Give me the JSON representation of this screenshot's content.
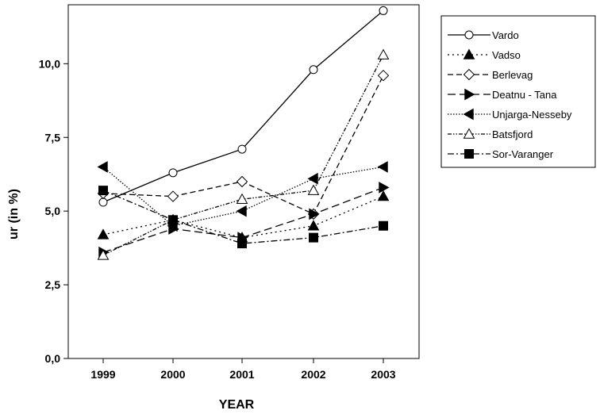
{
  "chart_data": {
    "type": "line",
    "xlabel": "YEAR",
    "ylabel": "ur (in %)",
    "categories": [
      "1999",
      "2000",
      "2001",
      "2002",
      "2003"
    ],
    "ylim": [
      0,
      12
    ],
    "yticks": [
      "0,0",
      "2,5",
      "5,0",
      "7,5",
      "10,0"
    ],
    "ytick_values": [
      0,
      2.5,
      5.0,
      7.5,
      10.0
    ],
    "grid": false,
    "legend_position": "right",
    "series": [
      {
        "name": "Vardo",
        "values": [
          5.3,
          6.3,
          7.1,
          9.8,
          11.8
        ],
        "marker": "circle-open",
        "dash": "solid"
      },
      {
        "name": "Vadso",
        "values": [
          4.2,
          4.7,
          4.1,
          4.5,
          5.5
        ],
        "marker": "triangle-up",
        "dash": "dot"
      },
      {
        "name": "Berlevag",
        "values": [
          5.6,
          5.5,
          6.0,
          4.9,
          9.6
        ],
        "marker": "diamond-open",
        "dash": "dash"
      },
      {
        "name": "Deatnu - Tana",
        "values": [
          3.6,
          4.4,
          4.1,
          4.9,
          5.8
        ],
        "marker": "triangle-right",
        "dash": "longdash"
      },
      {
        "name": "Unjarga-Nesseby",
        "values": [
          6.5,
          4.5,
          5.0,
          6.1,
          6.5
        ],
        "marker": "triangle-left",
        "dash": "dense-dot"
      },
      {
        "name": "Batsfjord",
        "values": [
          3.5,
          4.7,
          5.4,
          5.7,
          10.3
        ],
        "marker": "triangle-open",
        "dash": "dash-dot-dot"
      },
      {
        "name": "Sor-Varanger",
        "values": [
          5.7,
          4.7,
          3.9,
          4.1,
          4.5
        ],
        "marker": "square",
        "dash": "dash-dot"
      }
    ]
  }
}
